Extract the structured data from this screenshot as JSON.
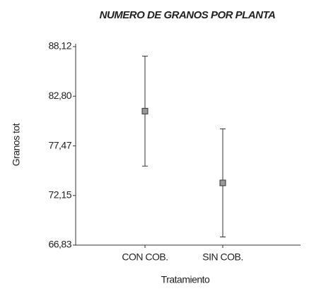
{
  "chart_data": {
    "type": "errorbar",
    "title": "NUMERO DE GRANOS POR PLANTA",
    "x_label": "Tratamiento",
    "y_label": "Granos tot",
    "categories": [
      "CON COB.",
      "SIN COB."
    ],
    "values": [
      81.2,
      73.5
    ],
    "errors": [
      5.9,
      5.8
    ],
    "color": "#999999",
    "ylim": [
      66.83,
      88.12
    ],
    "yticks": [
      {
        "value": 66.83,
        "label": "66,83"
      },
      {
        "value": 72.15,
        "label": "72,15"
      },
      {
        "value": 77.47,
        "label": "77,47"
      },
      {
        "value": 82.8,
        "label": "82,80"
      },
      {
        "value": 88.12,
        "label": "88,12"
      }
    ]
  }
}
